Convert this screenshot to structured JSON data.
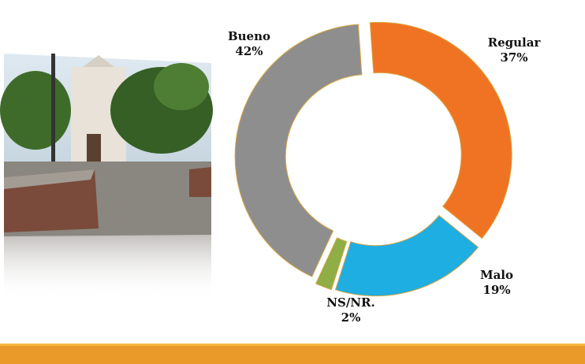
{
  "chart_data": {
    "type": "donut",
    "categories": [
      "Regular",
      "Malo",
      "NS/NR.",
      "Bueno"
    ],
    "values": [
      37,
      19,
      2,
      42
    ],
    "value_labels": [
      "37%",
      "19%",
      "2%",
      "42%"
    ],
    "colors": [
      "#f07323",
      "#1eaee2",
      "#8fae45",
      "#8e8e8e"
    ]
  }
}
